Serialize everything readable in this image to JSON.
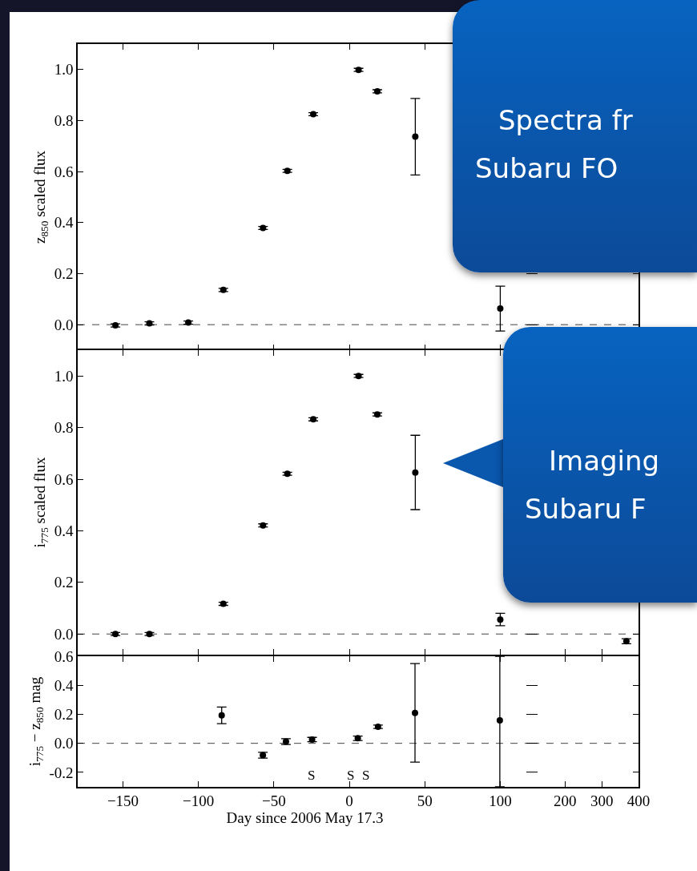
{
  "chart_data": [
    {
      "type": "scatter",
      "ylabel": "z$_{850}$ scaled flux",
      "xlim": [
        -180,
        121
      ],
      "xticks": [
        -150,
        -100,
        -50,
        0,
        50,
        100
      ],
      "ylim": [
        -0.1,
        1.1
      ],
      "yticks": [
        {
          "value": 0,
          "label": "0.0"
        },
        {
          "value": 0.2,
          "label": "0.2"
        },
        {
          "value": 0.4,
          "label": "0.4"
        },
        {
          "value": 0.6,
          "label": "0.6"
        },
        {
          "value": 0.8,
          "label": "0.8"
        },
        {
          "value": 1,
          "label": "1.0"
        }
      ],
      "tick_labels": "y",
      "marker": "circle",
      "x": [
        -155,
        -132.5,
        -106.7,
        -83.5,
        -57.2,
        -41.1,
        -23.9,
        6.1,
        18.5,
        43.7,
        100
      ],
      "values": [
        -0.003,
        0.005,
        0.008,
        0.136,
        0.379,
        0.603,
        0.825,
        0.999,
        0.915,
        0.737,
        0.063
      ],
      "errors": [
        0.006,
        0.006,
        0.006,
        0.006,
        0.006,
        0.006,
        0.006,
        0.006,
        0.006,
        0.15,
        0.088
      ],
      "color": "#000000",
      "ref_lines": [
        {
          "axis": "y",
          "value": 0,
          "line_style": "dashed",
          "color": "#444444"
        }
      ]
    },
    {
      "type": "scatter",
      "xlim": [
        110,
        400
      ],
      "xticks": [
        200,
        300,
        400
      ],
      "ylim": [
        -0.1,
        1.1
      ],
      "yticks": [
        0,
        0.2,
        0.4,
        0.6,
        0.8,
        1
      ],
      "tick_labels": false,
      "marker": "circle",
      "color": "#000000",
      "ref_lines": [
        {
          "axis": "y",
          "value": 0,
          "line_style": "dashed",
          "color": "#444444"
        }
      ],
      "annotations": [
        "Spectra fr\nSubaru FO"
      ]
    },
    {
      "type": "scatter",
      "ylabel": "i$_{775}$ scaled flux",
      "xlim": [
        -180,
        121
      ],
      "xticks": [
        -150,
        -100,
        -50,
        0,
        50,
        100
      ],
      "ylim": [
        -0.08,
        1.1
      ],
      "yticks": [
        {
          "value": 0,
          "label": "0.0"
        },
        {
          "value": 0.2,
          "label": "0.2"
        },
        {
          "value": 0.4,
          "label": "0.4"
        },
        {
          "value": 0.6,
          "label": "0.6"
        },
        {
          "value": 0.8,
          "label": "0.8"
        },
        {
          "value": 1,
          "label": "1.0"
        }
      ],
      "tick_labels": "y",
      "marker": "circle",
      "x": [
        -155,
        -132.5,
        -83.5,
        -57.2,
        -41.1,
        -23.9,
        6.1,
        18.5,
        43.7,
        100
      ],
      "values": [
        0,
        0,
        0.117,
        0.421,
        0.621,
        0.832,
        1,
        0.851,
        0.626,
        0.056
      ],
      "errors": [
        0.006,
        0.006,
        0.006,
        0.006,
        0.006,
        0.006,
        0.006,
        0.006,
        0.144,
        0.024
      ],
      "color": "#000000",
      "ref_lines": [
        {
          "axis": "y",
          "value": 0,
          "line_style": "dashed",
          "color": "#444444"
        }
      ]
    },
    {
      "type": "scatter",
      "xlim": [
        110,
        400
      ],
      "xticks": [
        200,
        300,
        400
      ],
      "ylim": [
        -0.08,
        1.1
      ],
      "yticks": [
        0,
        0.2,
        0.4,
        0.6,
        0.8,
        1
      ],
      "tick_labels": false,
      "marker": "circle",
      "x": [
        367
      ],
      "values": [
        -0.028
      ],
      "errors": [
        0.01
      ],
      "color": "#000000",
      "ref_lines": [
        {
          "axis": "y",
          "value": 0,
          "line_style": "dashed",
          "color": "#444444"
        }
      ],
      "annotations": [
        "Imaging\nSubaru F"
      ]
    },
    {
      "type": "scatter",
      "xlabel": "Day since 2006 May 17.3",
      "ylabel": "i$_{775}$ − z$_{850}$ mag",
      "xlim": [
        -180,
        121
      ],
      "xticks": [
        {
          "value": -150,
          "label": "−150"
        },
        {
          "value": -100,
          "label": "−100"
        },
        {
          "value": -50,
          "label": "−50"
        },
        0,
        50,
        100
      ],
      "ylim": [
        -0.3,
        0.6
      ],
      "yticks": [
        {
          "value": -0.2,
          "label": "-0.2"
        },
        {
          "value": 0,
          "label": "0.0"
        },
        {
          "value": 0.2,
          "label": "0.2"
        },
        {
          "value": 0.4,
          "label": "0.4"
        },
        {
          "value": 0.6,
          "label": "0.6"
        }
      ],
      "marker": "circle",
      "x": [
        -84.6,
        -57.3,
        -42,
        -24.7,
        5.6,
        19,
        43.5,
        99.7
      ],
      "values": [
        0.193,
        -0.082,
        0.012,
        0.026,
        0.035,
        0.114,
        0.21,
        0.158
      ],
      "errors": [
        0.057,
        0.02,
        0.02,
        0.015,
        0.015,
        0.012,
        [
          -0.13,
          0.55
        ],
        [
          -0.3,
          0.6
        ]
      ],
      "color": "#000000",
      "ref_lines": [
        {
          "axis": "y",
          "value": 0,
          "line_style": "dashed",
          "color": "#444444"
        }
      ],
      "annotations": [
        "S",
        "S",
        "S"
      ]
    },
    {
      "type": "scatter",
      "xlim": [
        110,
        400
      ],
      "xticks": [
        200,
        300,
        400
      ],
      "ylim": [
        -0.3,
        0.6
      ],
      "yticks": [
        -0.2,
        0,
        0.2,
        0.4,
        0.6
      ],
      "tick_labels": "x",
      "marker": "circle",
      "color": "#000000",
      "ref_lines": [
        {
          "axis": "y",
          "value": 0,
          "line_style": "dashed",
          "color": "#444444"
        }
      ]
    }
  ]
}
